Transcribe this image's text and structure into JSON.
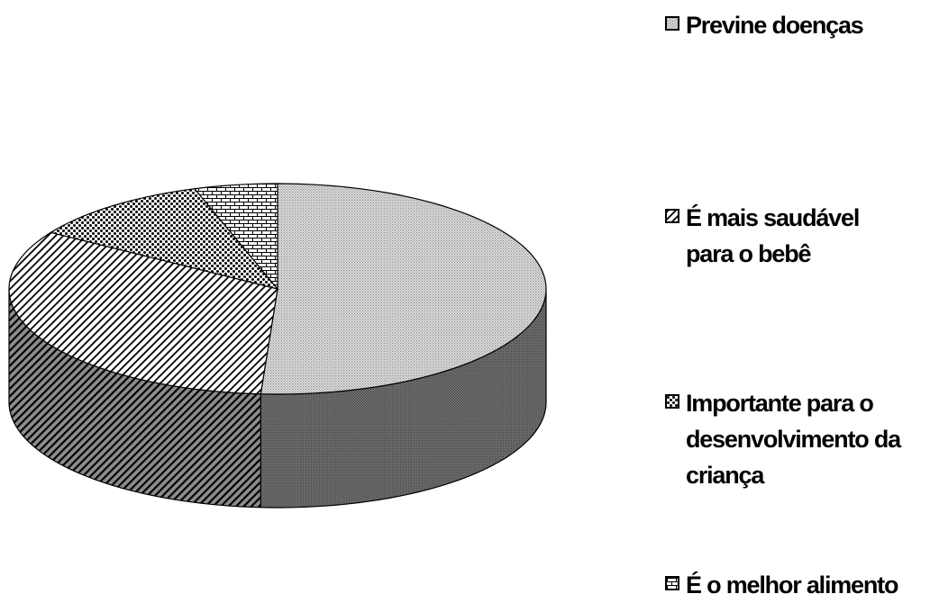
{
  "chart_data": {
    "type": "pie",
    "style": "3d",
    "slices": [
      {
        "label": "Previne doenças",
        "value": 51,
        "pattern": "light-dots",
        "pattern_name": "fine-dotted-gray"
      },
      {
        "label": "É mais saudável\npara o bebê",
        "value": 33,
        "pattern": "diagonal-stripes",
        "pattern_name": "diagonal-hatch"
      },
      {
        "label": "Importante para o\ndesenvolvimento da\ncriança",
        "value": 11,
        "pattern": "dark-dots",
        "pattern_name": "coarse-dotted"
      },
      {
        "label": "É o melhor alimento",
        "value": 5,
        "pattern": "bricks",
        "pattern_name": "brick"
      }
    ],
    "legend_position": "right",
    "colors": {
      "outline": "#000000",
      "background": "#ffffff"
    }
  }
}
